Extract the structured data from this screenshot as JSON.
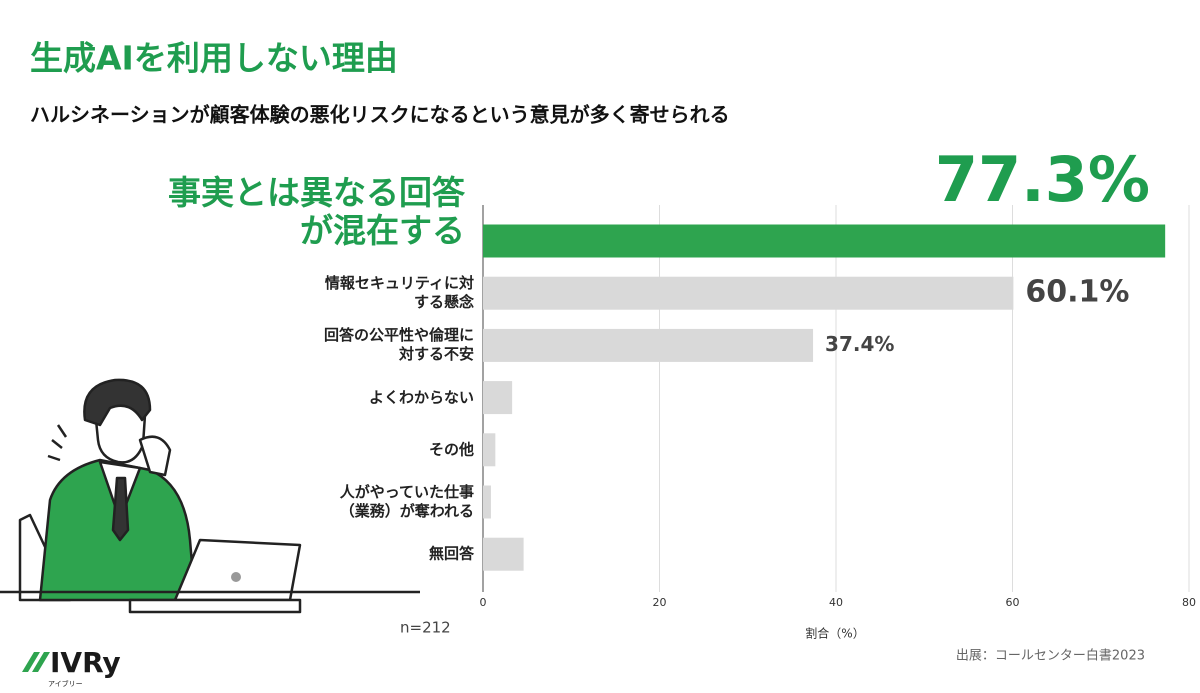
{
  "title": "生成AIを利用しない理由",
  "subtitle": "ハルシネーションが顧客体験の悪化リスクになるという意見が多く寄せられる",
  "chart_data": {
    "type": "bar",
    "orientation": "horizontal",
    "categories": [
      "事実とは異なる回答が混在する",
      "情報セキュリティに対する懸念",
      "回答の公平性や倫理に対する不安",
      "よくわからない",
      "その他",
      "人がやっていた仕事（業務）が奪われる",
      "無回答"
    ],
    "values": [
      77.3,
      60.1,
      37.4,
      3.3,
      1.4,
      0.9,
      4.6
    ],
    "value_labels": [
      "77.3%",
      "60.1%",
      "37.4%",
      null,
      null,
      null,
      null
    ],
    "colors": [
      "#2ea44f",
      "#d9d9d9",
      "#d9d9d9",
      "#d9d9d9",
      "#d9d9d9",
      "#d9d9d9",
      "#d9d9d9"
    ],
    "xlabel": "割合（%）",
    "xlim": [
      0,
      80
    ],
    "xticks": [
      0,
      20,
      40,
      60,
      80
    ],
    "grid": true,
    "note": "n=212"
  },
  "source": "出展：コールセンター白書2023",
  "logo": {
    "name": "IVRy",
    "reading": "アイブリー"
  }
}
